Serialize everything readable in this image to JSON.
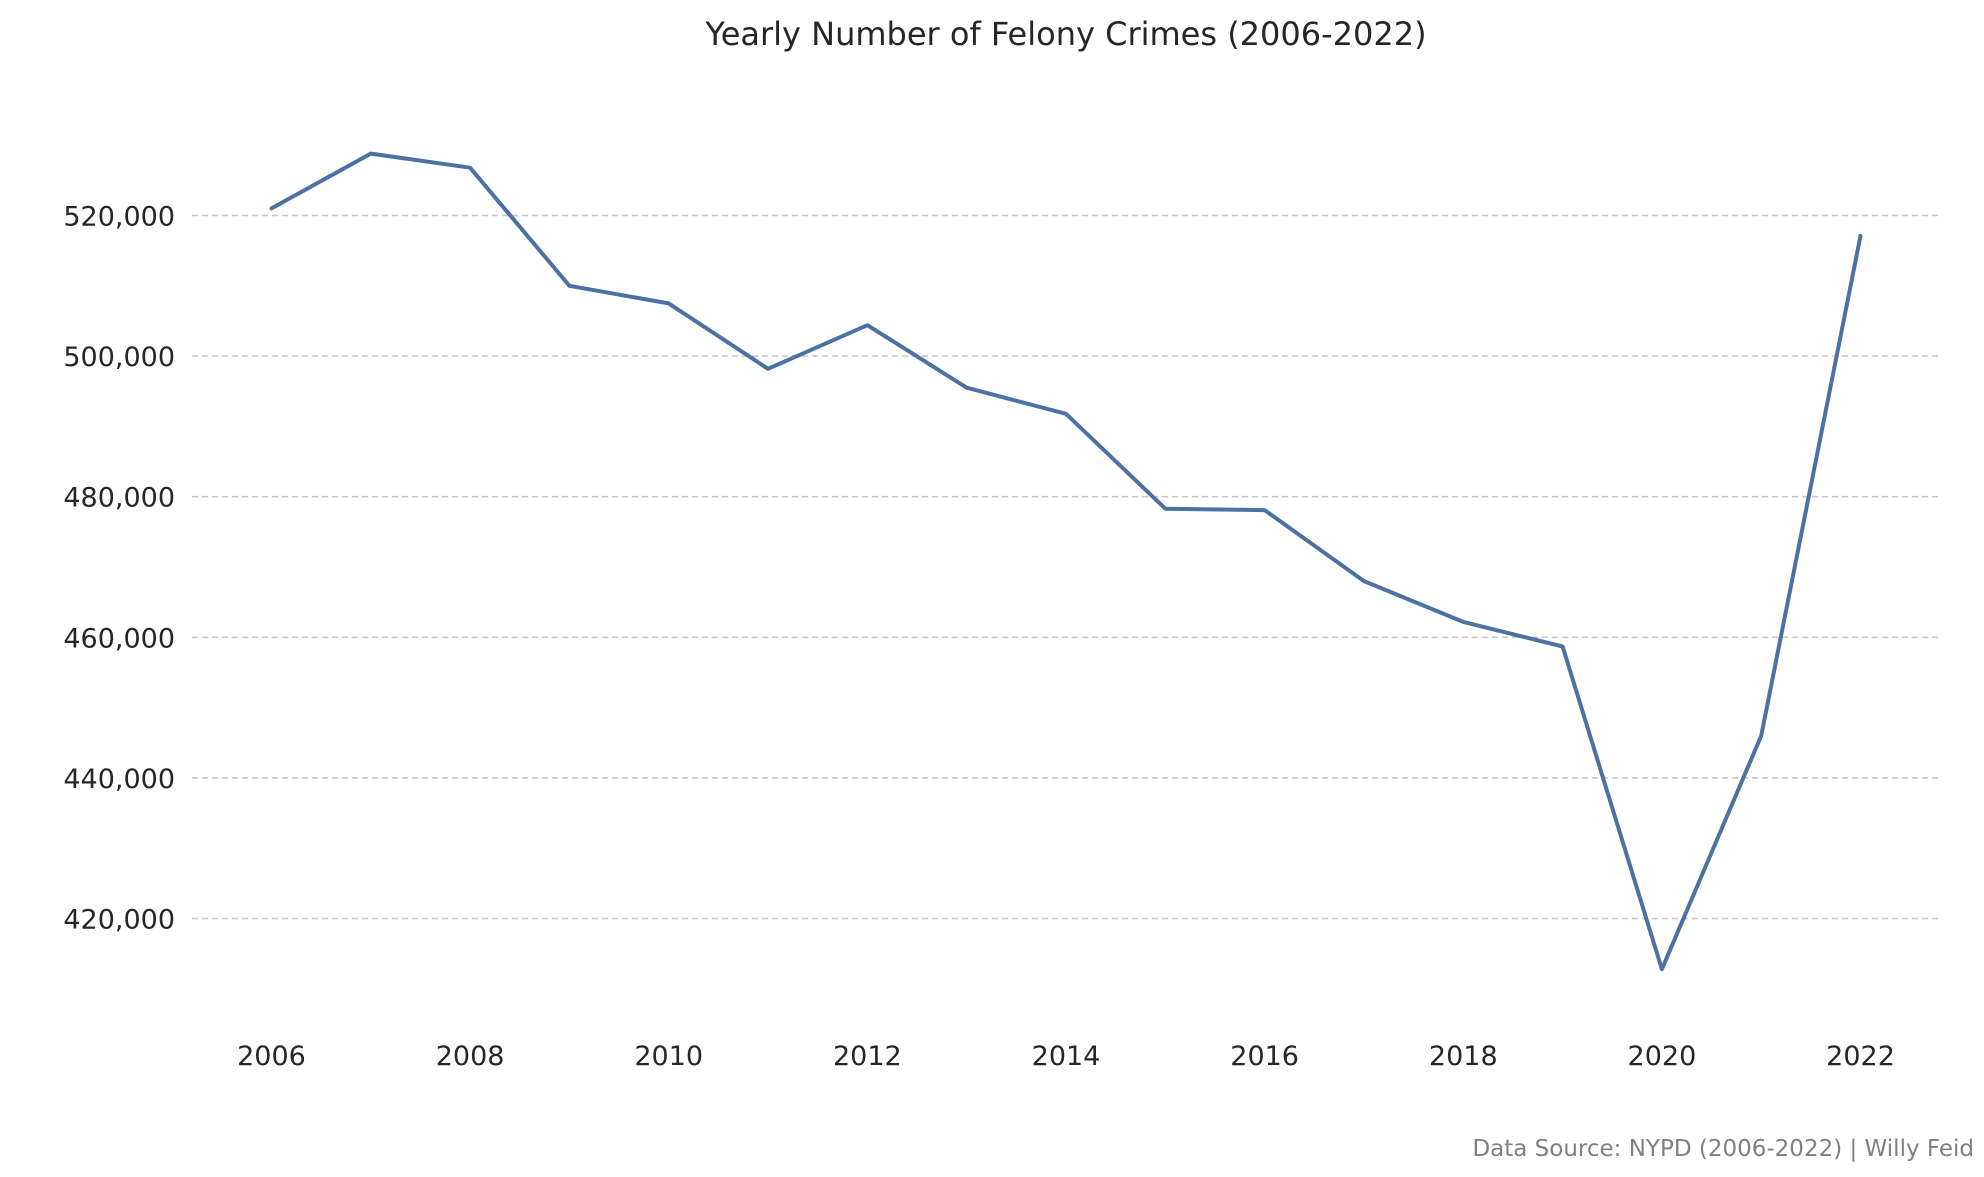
{
  "chart_data": {
    "type": "line",
    "title": "Yearly Number of Felony Crimes (2006-2022)",
    "xlabel": "",
    "ylabel": "",
    "x": [
      2006,
      2007,
      2008,
      2009,
      2010,
      2011,
      2012,
      2013,
      2014,
      2015,
      2016,
      2017,
      2018,
      2019,
      2020,
      2021,
      2022
    ],
    "series": [
      {
        "values": [
          521000,
          528800,
          526800,
          510000,
          507500,
          498200,
          504400,
          495500,
          491800,
          478300,
          478100,
          468000,
          462200,
          458700,
          412800,
          446000,
          517100
        ],
        "color": "#4c72a4"
      }
    ],
    "xticks": [
      2006,
      2008,
      2010,
      2012,
      2014,
      2016,
      2018,
      2020,
      2022
    ],
    "xtick_labels": [
      "2006",
      "2008",
      "2010",
      "2012",
      "2014",
      "2016",
      "2018",
      "2020",
      "2022"
    ],
    "yticks": [
      420000,
      440000,
      460000,
      480000,
      500000,
      520000
    ],
    "ytick_labels": [
      "420,000",
      "440,000",
      "460,000",
      "480,000",
      "500,000",
      "520,000"
    ],
    "xlim": [
      2005.2,
      2022.8
    ],
    "ylim": [
      407000,
      535000
    ],
    "grid": "horizontal-dashed",
    "gridColor": "#c8c8c8",
    "source": "Data Source: NYPD (2006-2022) | Willy Feid"
  }
}
